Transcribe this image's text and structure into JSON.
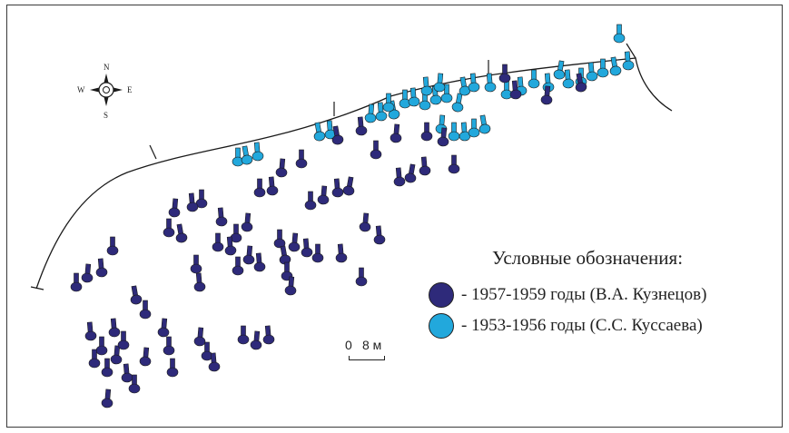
{
  "compass": {
    "north": "N",
    "south": "S",
    "east": "E",
    "west": "W"
  },
  "legend": {
    "title": "Условные обозначения:",
    "items": [
      {
        "label": "- 1957-1959 годы (В.А. Кузнецов)",
        "color": "#2e2a7a"
      },
      {
        "label": "- 1953-1956 годы (С.С. Куссаева)",
        "color": "#22a8dc"
      }
    ]
  },
  "scale_bar": {
    "start": "0",
    "length_label": "8 м"
  },
  "colors": {
    "dark_graves": "#2e2a7a",
    "light_graves": "#22a8dc",
    "outline": "#1a1a1a"
  }
}
